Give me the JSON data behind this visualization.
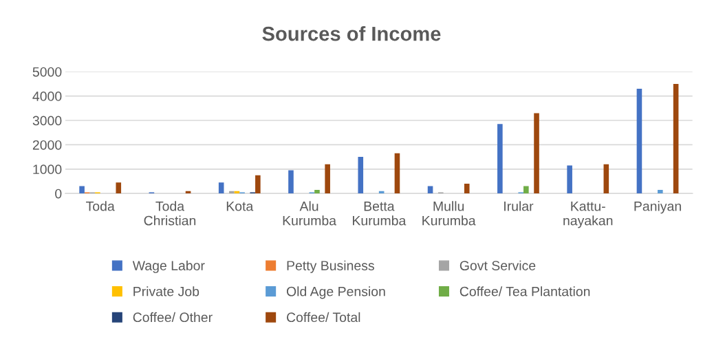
{
  "chart_data": {
    "type": "bar",
    "title": "Sources of Income",
    "categories": [
      "Toda",
      "Toda\nChristian",
      "Kota",
      "Alu\nKurumba",
      "Betta\nKurumba",
      "Mullu\nKurumba",
      "Irular",
      "Kattu-\nnayakan",
      "Paniyan"
    ],
    "series": [
      {
        "name": "Wage Labor",
        "color": "#4472c4",
        "values": [
          300,
          50,
          450,
          950,
          1500,
          300,
          2850,
          1150,
          4300
        ]
      },
      {
        "name": "Petty Business",
        "color": "#ed7d31",
        "values": [
          50,
          null,
          null,
          null,
          null,
          null,
          null,
          null,
          null
        ]
      },
      {
        "name": "Govt Service",
        "color": "#a5a5a5",
        "values": [
          50,
          null,
          100,
          null,
          null,
          50,
          null,
          null,
          null
        ]
      },
      {
        "name": "Private Job",
        "color": "#ffc000",
        "values": [
          50,
          null,
          100,
          null,
          null,
          null,
          null,
          null,
          null
        ]
      },
      {
        "name": "Old Age Pension",
        "color": "#5b9bd5",
        "values": [
          null,
          null,
          50,
          50,
          100,
          null,
          50,
          null,
          150
        ]
      },
      {
        "name": "Coffee/ Tea Plantation",
        "color": "#70ad47",
        "values": [
          null,
          null,
          null,
          150,
          null,
          null,
          300,
          null,
          null
        ]
      },
      {
        "name": "Coffee/ Other",
        "color": "#264478",
        "values": [
          null,
          null,
          50,
          null,
          null,
          null,
          null,
          null,
          null
        ]
      },
      {
        "name": "Coffee/ Total",
        "color": "#9e480e",
        "values": [
          450,
          100,
          750,
          1200,
          1650,
          400,
          3300,
          1200,
          4500
        ]
      }
    ],
    "ylim": [
      0,
      5000
    ],
    "yticks": [
      0,
      1000,
      2000,
      3000,
      4000,
      5000
    ],
    "grid": "y",
    "legend": "bottom"
  }
}
